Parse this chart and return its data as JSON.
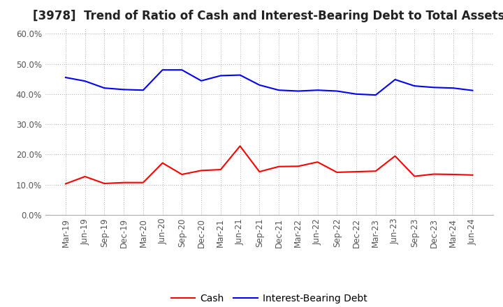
{
  "title": "[3978]  Trend of Ratio of Cash and Interest-Bearing Debt to Total Assets",
  "x_labels": [
    "Mar-19",
    "Jun-19",
    "Sep-19",
    "Dec-19",
    "Mar-20",
    "Jun-20",
    "Sep-20",
    "Dec-20",
    "Mar-21",
    "Jun-21",
    "Sep-21",
    "Dec-21",
    "Mar-22",
    "Jun-22",
    "Sep-22",
    "Dec-22",
    "Mar-23",
    "Jun-23",
    "Sep-23",
    "Dec-23",
    "Mar-24",
    "Jun-24"
  ],
  "cash": [
    0.103,
    0.127,
    0.104,
    0.107,
    0.107,
    0.172,
    0.134,
    0.147,
    0.15,
    0.228,
    0.143,
    0.16,
    0.161,
    0.175,
    0.141,
    0.143,
    0.145,
    0.195,
    0.128,
    0.135,
    0.134,
    0.132
  ],
  "interest_bearing_debt": [
    0.455,
    0.443,
    0.42,
    0.415,
    0.413,
    0.48,
    0.48,
    0.444,
    0.461,
    0.463,
    0.43,
    0.413,
    0.41,
    0.413,
    0.41,
    0.4,
    0.397,
    0.448,
    0.427,
    0.422,
    0.42,
    0.412
  ],
  "cash_color": "#FF0000",
  "debt_color": "#0000FF",
  "background_color": "#FFFFFF",
  "grid_color": "#AAAAAA",
  "ylim": [
    0.0,
    0.62
  ],
  "yticks": [
    0.0,
    0.1,
    0.2,
    0.3,
    0.4,
    0.5,
    0.6
  ],
  "legend_cash": "Cash",
  "legend_debt": "Interest-Bearing Debt",
  "title_fontsize": 12,
  "tick_fontsize": 8.5,
  "legend_fontsize": 10
}
